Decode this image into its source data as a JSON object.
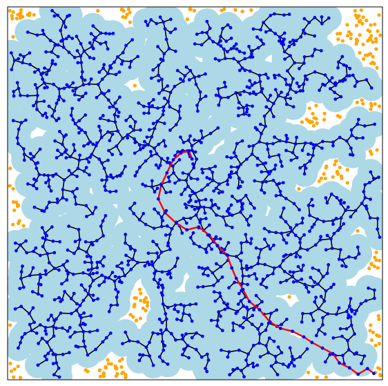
{
  "figure": {
    "type": "rrt-tree-visualization",
    "title": "",
    "colors": {
      "background": "#ffffff",
      "coverage": "#add8e6",
      "tree_edge": "#000000",
      "tree_node": "#0000ff",
      "free_sample": "#ffa500",
      "path": "#ff0000",
      "frame": "#000000"
    },
    "path_waypoints": [
      [
        0.977,
        0.983
      ],
      [
        0.96,
        0.97
      ],
      [
        0.935,
        0.985
      ],
      [
        0.912,
        0.968
      ],
      [
        0.885,
        0.955
      ],
      [
        0.868,
        0.93
      ],
      [
        0.84,
        0.915
      ],
      [
        0.812,
        0.9
      ],
      [
        0.79,
        0.885
      ],
      [
        0.76,
        0.87
      ],
      [
        0.728,
        0.862
      ],
      [
        0.7,
        0.845
      ],
      [
        0.672,
        0.812
      ],
      [
        0.645,
        0.79
      ],
      [
        0.628,
        0.758
      ],
      [
        0.61,
        0.728
      ],
      [
        0.598,
        0.7
      ],
      [
        0.585,
        0.665
      ],
      [
        0.56,
        0.64
      ],
      [
        0.538,
        0.612
      ],
      [
        0.51,
        0.59
      ],
      [
        0.478,
        0.598
      ],
      [
        0.45,
        0.58
      ],
      [
        0.42,
        0.552
      ],
      [
        0.402,
        0.515
      ],
      [
        0.41,
        0.478
      ],
      [
        0.425,
        0.445
      ],
      [
        0.442,
        0.41
      ],
      [
        0.462,
        0.392
      ],
      [
        0.484,
        0.386
      ],
      [
        0.492,
        0.408
      ]
    ]
  }
}
